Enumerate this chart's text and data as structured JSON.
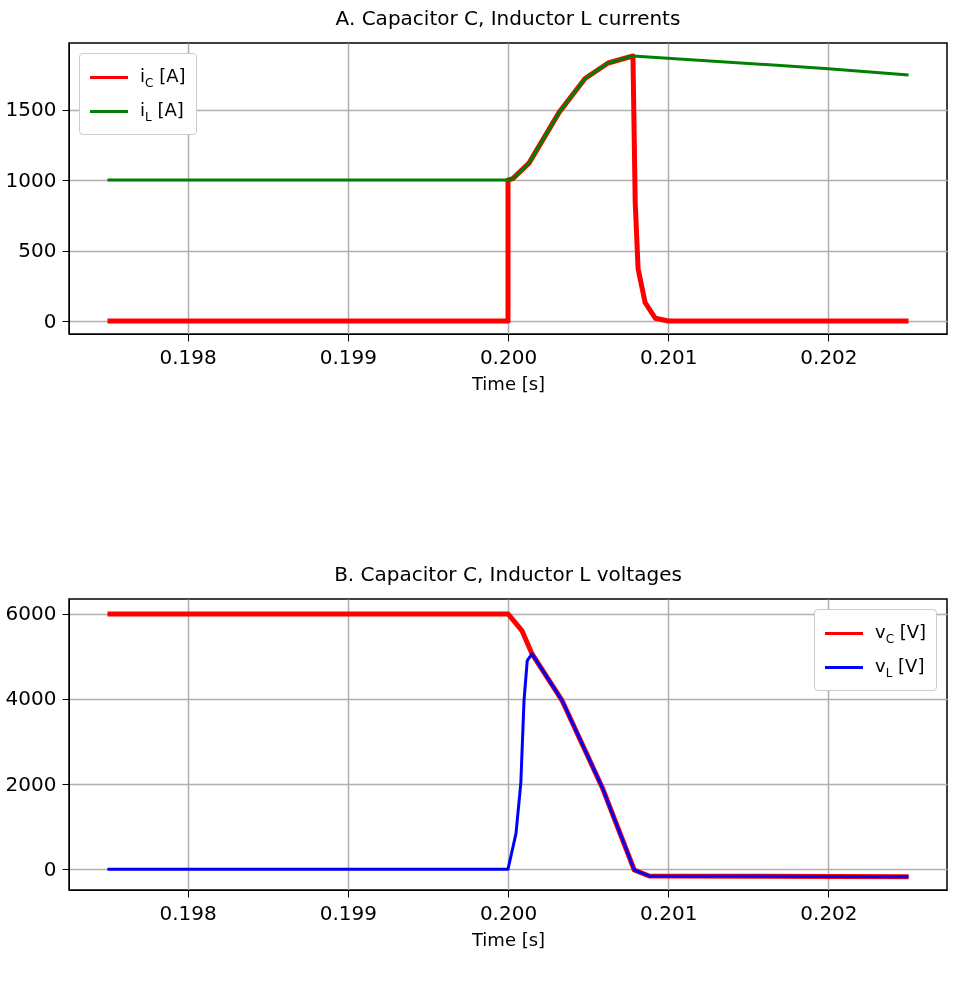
{
  "chart_data": [
    {
      "type": "line",
      "title": "A. Capacitor C, Inductor L currents",
      "xlabel": "Time [s]",
      "xlim": [
        0.19726,
        0.20274
      ],
      "xticks": [
        0.198,
        0.199,
        {
          "value": 0.2,
          "label": "0.200"
        },
        0.201,
        0.202
      ],
      "ylim": [
        -92,
        1972
      ],
      "yticks": [
        0,
        500,
        1000,
        1500
      ],
      "grid": true,
      "legend": "top left",
      "series": [
        {
          "name": "i$_{C}$ [A]",
          "color": "#ff0000",
          "x": [
            0.1975,
            0.2,
            0.2,
            0.20003,
            0.200131,
            0.200319,
            0.200481,
            0.200625,
            0.20078,
            0.200794,
            0.200812,
            0.200856,
            0.200919,
            0.201,
            0.2025
          ],
          "values": [
            0,
            0,
            1000,
            1010,
            1120,
            1480,
            1720,
            1830,
            1880,
            840,
            370,
            130,
            20,
            0,
            0
          ]
        },
        {
          "name": "i$_{L}$ [A]",
          "color": "#008000",
          "x": [
            0.1975,
            0.2,
            0.20003,
            0.200131,
            0.200319,
            0.200481,
            0.200625,
            0.20078,
            0.202,
            0.2025
          ],
          "values": [
            1000,
            1000,
            1010,
            1120,
            1480,
            1720,
            1830,
            1880,
            1790,
            1745
          ]
        }
      ]
    },
    {
      "type": "line",
      "title": "B. Capacitor C, Inductor L voltages",
      "xlabel": "Time [s]",
      "xlim": [
        0.19726,
        0.20274
      ],
      "xticks": [
        0.198,
        0.199,
        {
          "value": 0.2,
          "label": "0.200"
        },
        0.201,
        0.202
      ],
      "ylim": [
        -490,
        6350
      ],
      "yticks": [
        0,
        2000,
        4000,
        6000
      ],
      "grid": true,
      "legend": "top right",
      "series": [
        {
          "name": "v$_{C}$ [V]",
          "color": "#ff0000",
          "x": [
            0.1975,
            0.2,
            0.200088,
            0.20015,
            0.200338,
            0.200588,
            0.200788,
            0.200881,
            0.2025
          ],
          "values": [
            6000,
            6000,
            5600,
            5060,
            3960,
            1920,
            -20,
            -160,
            -180
          ]
        },
        {
          "name": "v$_{L}$ [V]",
          "color": "#0000ff",
          "x": [
            0.1975,
            0.2,
            0.20005,
            0.20008,
            0.2001,
            0.20012,
            0.20015,
            0.200338,
            0.200588,
            0.200788,
            0.200881,
            0.2025
          ],
          "values": [
            0,
            0,
            840,
            2020,
            3960,
            4900,
            5060,
            3960,
            1920,
            -20,
            -160,
            -180
          ]
        }
      ]
    }
  ]
}
